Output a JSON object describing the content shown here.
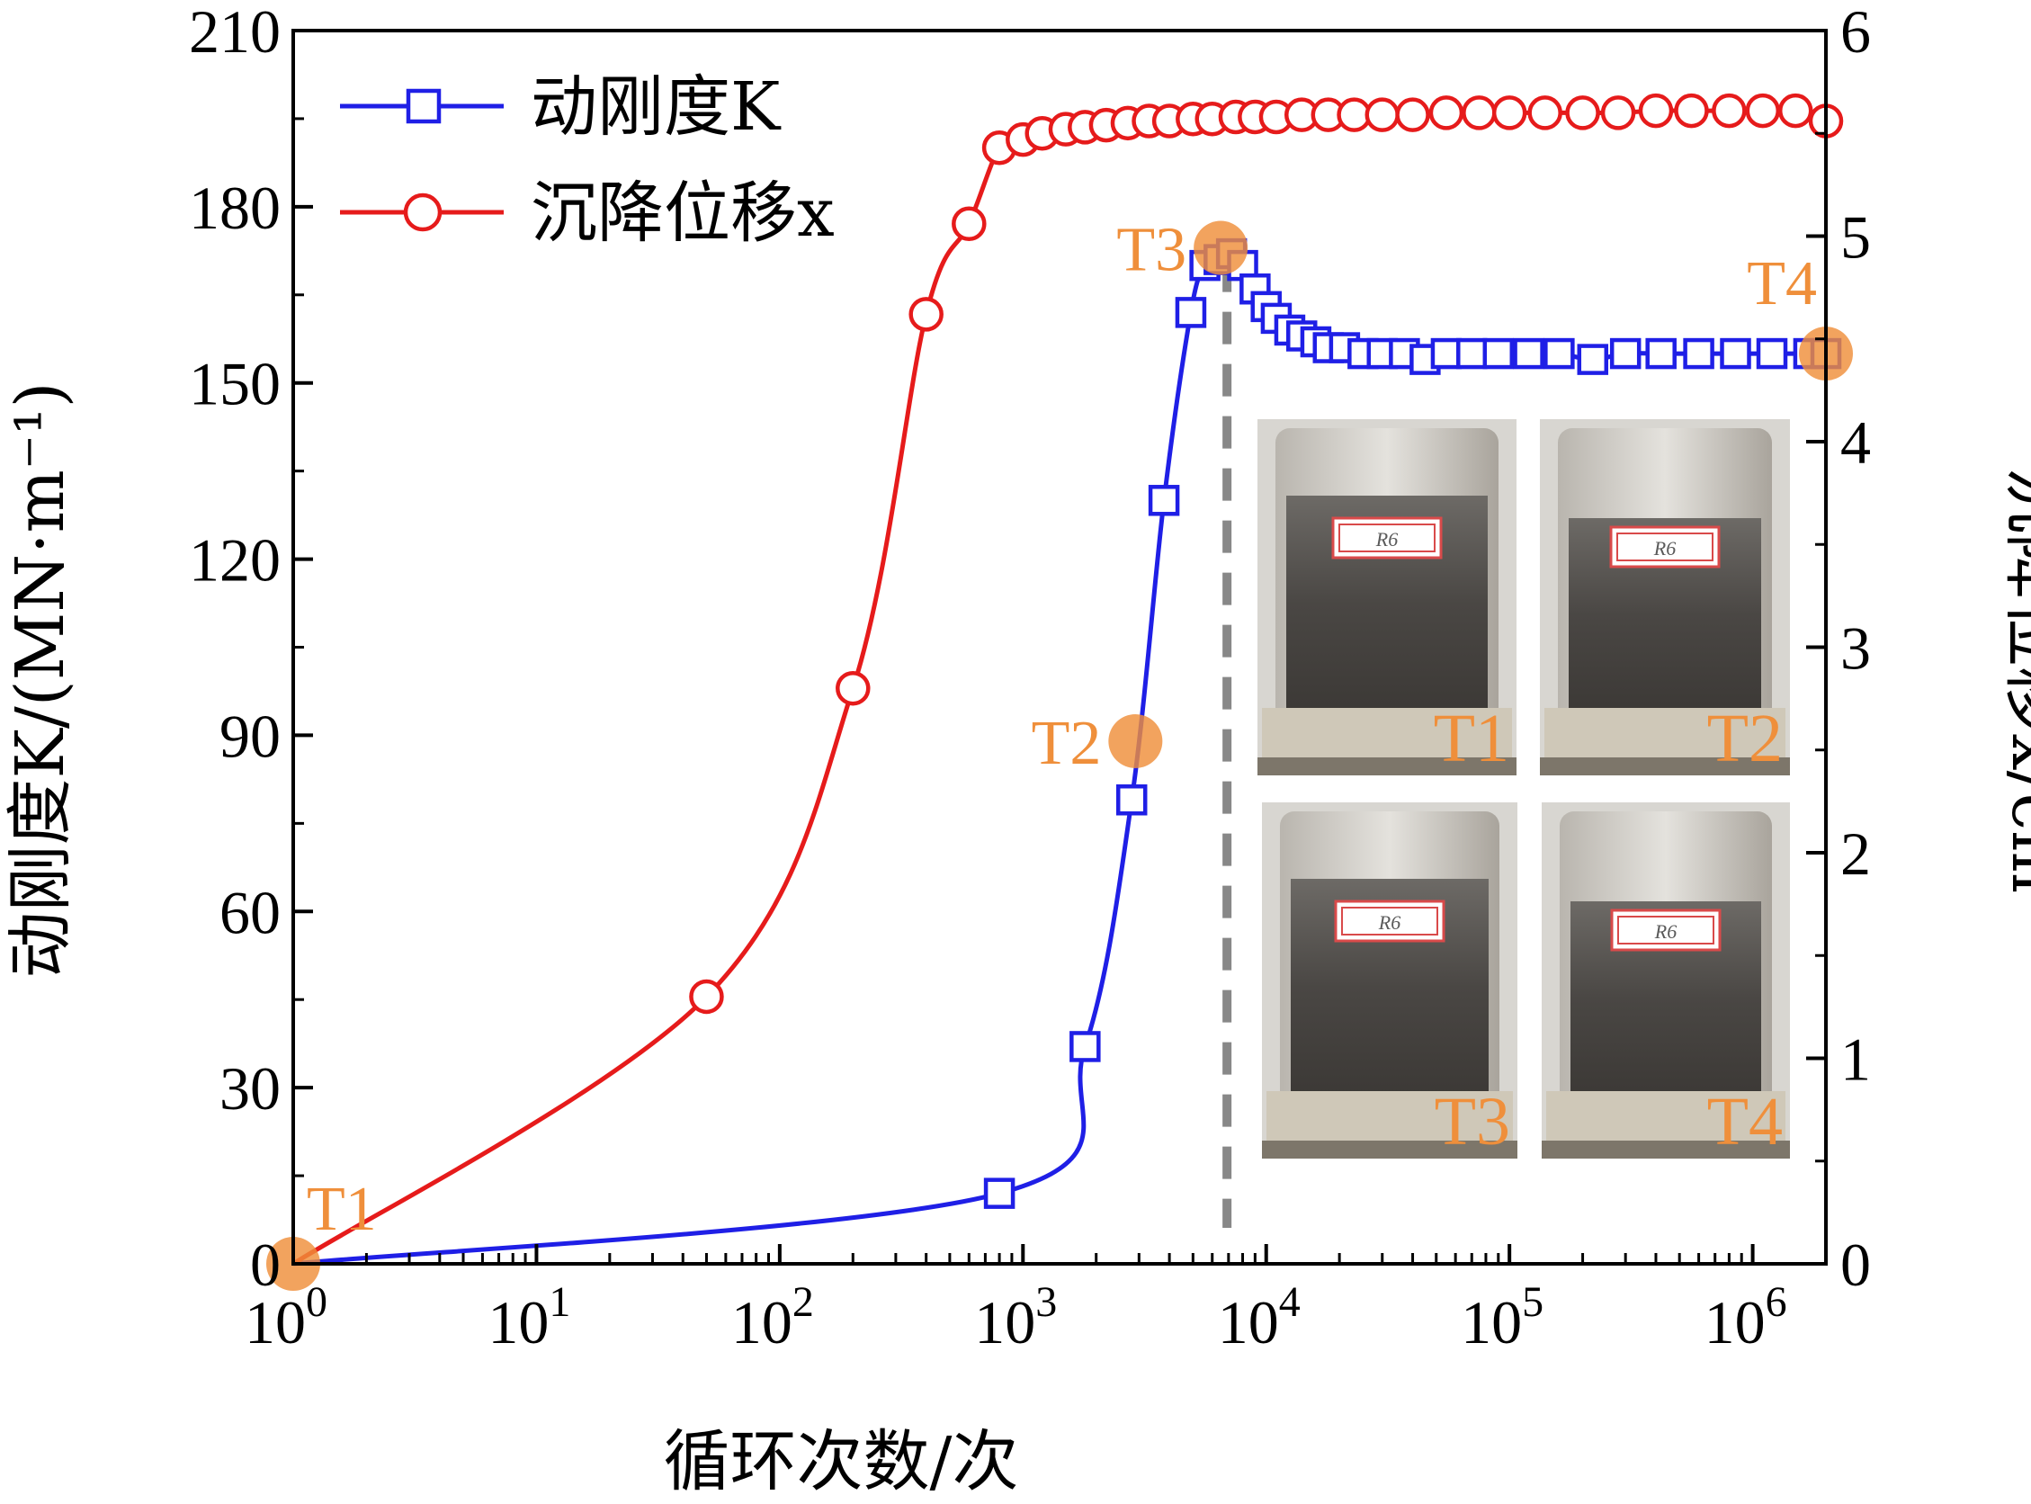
{
  "chart_data": {
    "type": "line",
    "xlabel": "循环次数/次",
    "ylabel_left": "动刚度K/(MN·m⁻¹)",
    "ylabel_right": "沉降位移x/cm",
    "x_scale": "log",
    "xlim": [
      1,
      2000000
    ],
    "ylim_left": [
      0,
      210
    ],
    "ylim_right": [
      0,
      6
    ],
    "x_ticks": [
      {
        "value": 1,
        "base": "10",
        "exp": "0"
      },
      {
        "value": 10,
        "base": "10",
        "exp": "1"
      },
      {
        "value": 100,
        "base": "10",
        "exp": "2"
      },
      {
        "value": 1000,
        "base": "10",
        "exp": "3"
      },
      {
        "value": 10000,
        "base": "10",
        "exp": "4"
      },
      {
        "value": 100000,
        "base": "10",
        "exp": "5"
      },
      {
        "value": 1000000,
        "base": "10",
        "exp": "6"
      }
    ],
    "y_left_ticks": [
      "0",
      "30",
      "60",
      "90",
      "120",
      "150",
      "180",
      "210"
    ],
    "y_right_ticks": [
      "0",
      "1",
      "2",
      "3",
      "4",
      "5",
      "6"
    ],
    "legend_position": "top-left",
    "series": [
      {
        "name": "动刚度K",
        "axis": "left",
        "color": "#1f1fe6",
        "marker": "square",
        "x": [
          1,
          800,
          1800,
          2800,
          3800,
          4900,
          5600,
          6400,
          7200,
          8000,
          9000,
          10000,
          11000,
          12500,
          14000,
          16000,
          18000,
          21000,
          25000,
          30000,
          37000,
          45000,
          55000,
          70000,
          90000,
          120000,
          160000,
          220000,
          300000,
          420000,
          600000,
          850000,
          1200000,
          1700000,
          2000000
        ],
        "values": [
          0,
          12,
          37,
          79,
          130,
          162,
          170,
          171,
          172,
          170,
          166,
          163,
          161,
          159,
          158,
          157,
          156,
          156,
          155,
          155,
          155,
          154,
          155,
          155,
          155,
          155,
          155,
          154,
          155,
          155,
          155,
          155,
          155,
          155,
          155
        ]
      },
      {
        "name": "沉降位移x",
        "axis": "right",
        "color": "#e61b1b",
        "marker": "circle",
        "x": [
          1,
          50,
          200,
          400,
          600,
          800,
          1000,
          1200,
          1500,
          1800,
          2200,
          2700,
          3300,
          4000,
          5000,
          6000,
          7500,
          9000,
          11000,
          14000,
          18000,
          23000,
          30000,
          40000,
          55000,
          75000,
          100000,
          140000,
          200000,
          280000,
          400000,
          560000,
          800000,
          1100000,
          1500000,
          2000000
        ],
        "values": [
          0,
          1.3,
          2.8,
          4.62,
          5.06,
          5.43,
          5.47,
          5.5,
          5.52,
          5.53,
          5.54,
          5.55,
          5.56,
          5.56,
          5.57,
          5.57,
          5.58,
          5.58,
          5.58,
          5.59,
          5.59,
          5.59,
          5.59,
          5.59,
          5.6,
          5.6,
          5.6,
          5.6,
          5.6,
          5.6,
          5.61,
          5.61,
          5.61,
          5.61,
          5.61,
          5.56
        ]
      }
    ],
    "annotations": [
      {
        "label": "T1",
        "x": 1,
        "y_left": 0
      },
      {
        "label": "T2",
        "x": 2900,
        "y_left": 89
      },
      {
        "label": "T3",
        "x": 6500,
        "y_left": 173
      },
      {
        "label": "T4",
        "x": 2000000,
        "y_left": 155
      }
    ],
    "reference_line": {
      "x": 6900,
      "style": "dashed",
      "color": "#888888"
    },
    "inset_photos": {
      "sample_tag": "R6",
      "labels": [
        "T1",
        "T2",
        "T3",
        "T4"
      ]
    }
  },
  "colors": {
    "blue": "#1f1fe6",
    "red": "#e61b1b",
    "orange": "#ef8f3b",
    "gray": "#888888"
  }
}
